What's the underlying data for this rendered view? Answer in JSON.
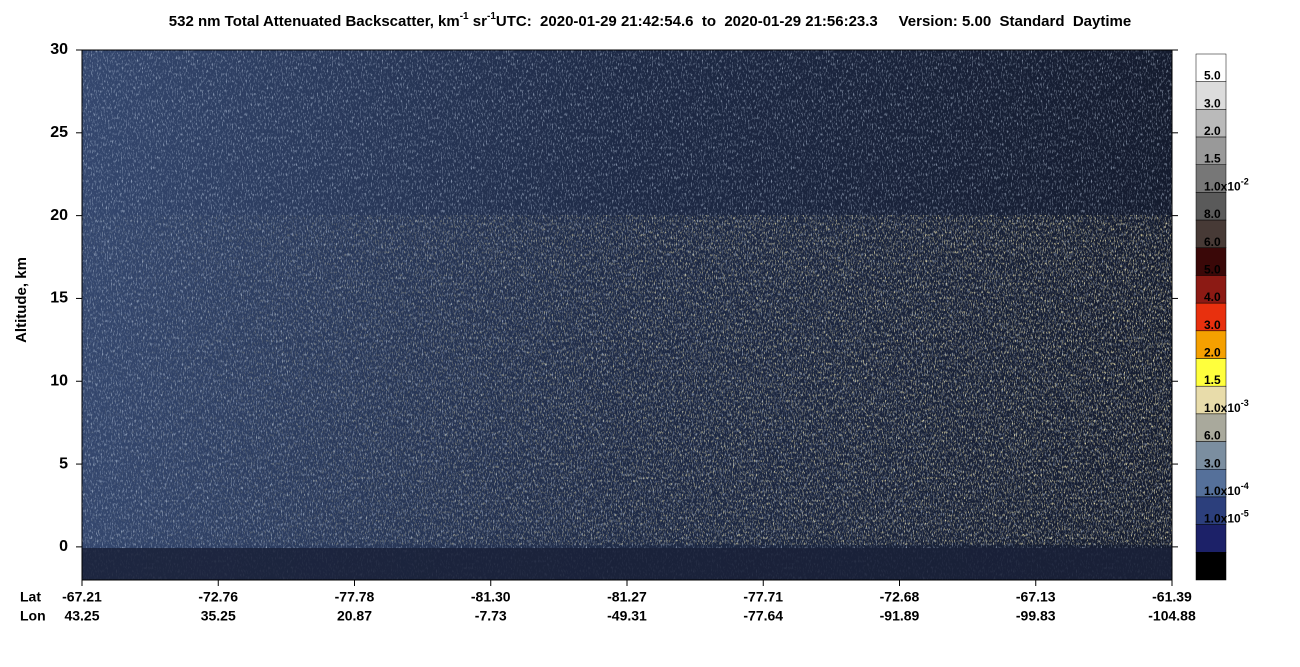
{
  "chart_data": {
    "type": "curtain",
    "title": [
      "532 nm Total Attenuated Backscatter, km",
      "-1",
      " sr",
      "-1"
    ],
    "subtitle": "UTC:  2020-01-29 21:42:54.6  to  2020-01-29 21:56:23.3     Version: 5.00  Standard  Daytime",
    "ylabel": "Altitude, km",
    "ylim": [
      -2,
      30
    ],
    "yticks": [
      0,
      5,
      10,
      15,
      20,
      25,
      30
    ],
    "x_rows": [
      "Lat",
      "Lon"
    ],
    "lat": [
      "-67.21",
      "-72.76",
      "-77.78",
      "-81.30",
      "-81.27",
      "-77.71",
      "-72.68",
      "-67.13",
      "-61.39"
    ],
    "lon": [
      "43.25",
      "35.25",
      "20.87",
      "-7.73",
      "-49.31",
      "-77.64",
      "-91.89",
      "-99.83",
      "-104.88"
    ],
    "colorbar": {
      "colors": [
        "#ffffff",
        "#dcdcdc",
        "#bababa",
        "#999999",
        "#777777",
        "#5a5a5a",
        "#473a36",
        "#3a0808",
        "#8c1a14",
        "#e8300e",
        "#f5a000",
        "#ffff3c",
        "#e8dcaa",
        "#a9a99c",
        "#7b8ea0",
        "#55709a",
        "#2c3f7c",
        "#1c2168",
        "#000000"
      ],
      "labels": [
        {
          "text": "5.0"
        },
        {
          "text": "3.0"
        },
        {
          "text": "2.0"
        },
        {
          "text": "1.5"
        },
        {
          "text": "1.0x10",
          "exp": "-2"
        },
        {
          "text": "8.0"
        },
        {
          "text": "6.0"
        },
        {
          "text": "5.0"
        },
        {
          "text": "4.0"
        },
        {
          "text": "3.0"
        },
        {
          "text": "2.0"
        },
        {
          "text": "1.5"
        },
        {
          "text": "1.0x10",
          "exp": "-3"
        },
        {
          "text": "6.0"
        },
        {
          "text": "3.0"
        },
        {
          "text": "1.0x10",
          "exp": "-4"
        },
        {
          "text": "1.0x10",
          "exp": "-5"
        }
      ]
    }
  }
}
